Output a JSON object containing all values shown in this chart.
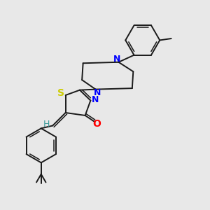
{
  "background_color": "#e8e8e8",
  "bond_color": "#1a1a1a",
  "S_color": "#cccc00",
  "N_color": "#0000ff",
  "O_color": "#ff0000",
  "H_color": "#3a9a9a",
  "figsize": [
    3.0,
    3.0
  ],
  "dpi": 100,
  "xlim": [
    0,
    10
  ],
  "ylim": [
    0,
    10
  ]
}
